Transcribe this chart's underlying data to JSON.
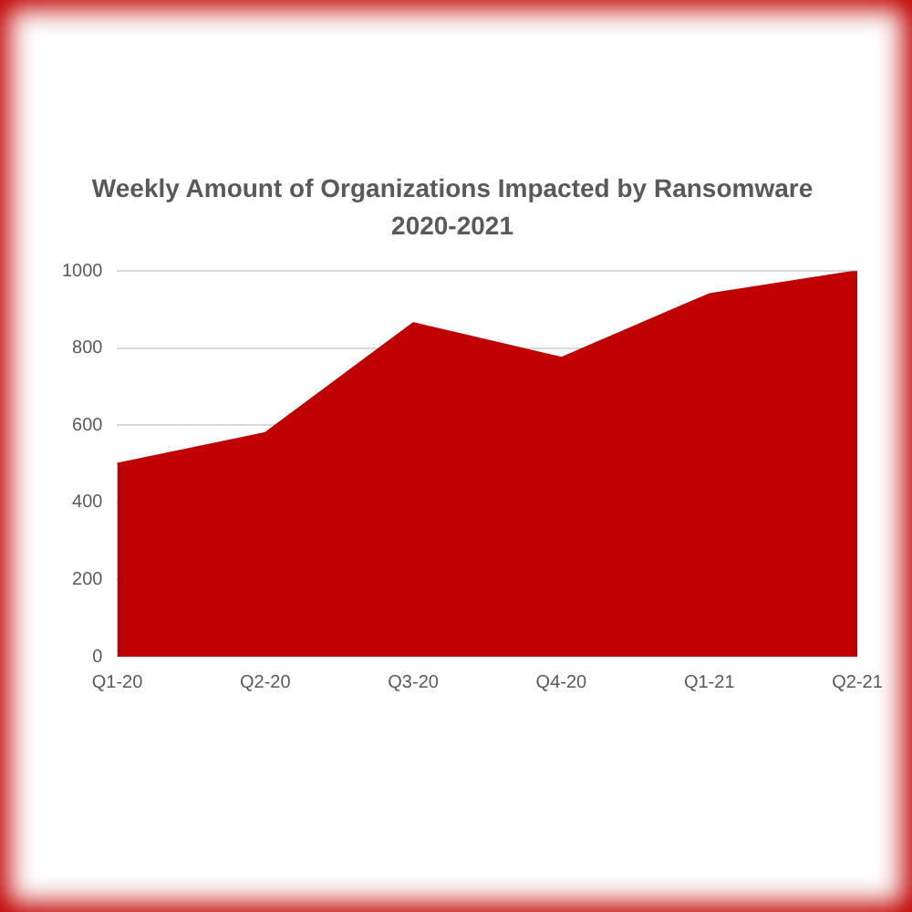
{
  "chart_data": {
    "type": "area",
    "title": "Weekly Amount of Organizations Impacted by Ransomware 2020-2021",
    "categories": [
      "Q1-20",
      "Q2-20",
      "Q3-20",
      "Q4-20",
      "Q1-21",
      "Q2-21"
    ],
    "values": [
      500,
      580,
      865,
      775,
      940,
      1000
    ],
    "color": "#c00000",
    "ylim": [
      0,
      1000
    ],
    "yticks": [
      0,
      200,
      400,
      600,
      800,
      1000
    ],
    "grid": "y"
  }
}
